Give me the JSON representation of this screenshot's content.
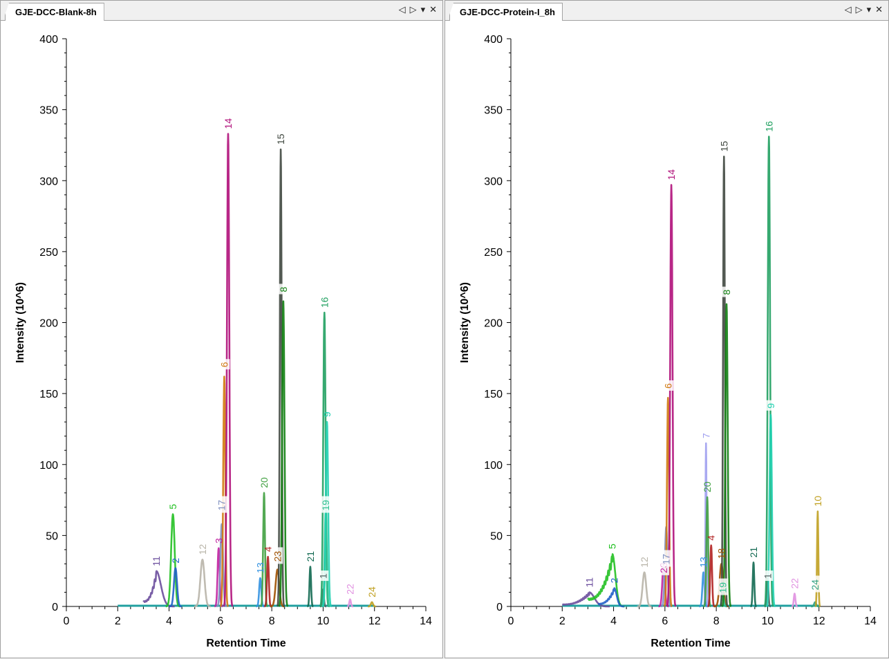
{
  "controls": {
    "prev": "◁",
    "next": "▷",
    "menu": "▾",
    "close": "✕"
  },
  "chart_data": [
    {
      "type": "line",
      "title": "GJE-DCC-Blank-8h",
      "xlabel": "Retention Time",
      "ylabel": "Intensity (10^6)",
      "xlim": [
        0,
        14
      ],
      "ylim": [
        0,
        400
      ],
      "xticks": [
        0,
        2,
        4,
        6,
        8,
        10,
        12,
        14
      ],
      "yticks": [
        0,
        50,
        100,
        150,
        200,
        250,
        300,
        350,
        400
      ],
      "baseline": [
        2,
        12
      ],
      "peaks": [
        {
          "id": "11",
          "rt": 3.5,
          "height": 25,
          "width": 0.18,
          "color": "#6a4c9c",
          "broad": 3.0
        },
        {
          "id": "5",
          "rt": 4.15,
          "height": 65,
          "width": 0.07,
          "color": "#22c022"
        },
        {
          "id": "2",
          "rt": 4.25,
          "height": 27,
          "width": 0.06,
          "color": "#1f5fc8"
        },
        {
          "id": "12",
          "rt": 5.3,
          "height": 33,
          "width": 0.08,
          "color": "#b8b4a8"
        },
        {
          "id": "3",
          "rt": 5.93,
          "height": 41,
          "width": 0.04,
          "color": "#c020a0"
        },
        {
          "id": "17",
          "rt": 6.05,
          "height": 58,
          "width": 0.05,
          "color": "#8090c0",
          "label_at": 66
        },
        {
          "id": "6",
          "rt": 6.15,
          "height": 162,
          "width": 0.04,
          "color": "#d07a10",
          "label_at": 167
        },
        {
          "id": "14",
          "rt": 6.3,
          "height": 333,
          "width": 0.045,
          "color": "#b0107a"
        },
        {
          "id": "13",
          "rt": 7.55,
          "height": 20,
          "width": 0.04,
          "color": "#3090e0"
        },
        {
          "id": "20",
          "rt": 7.7,
          "height": 80,
          "width": 0.035,
          "color": "#40a040"
        },
        {
          "id": "4",
          "rt": 7.85,
          "height": 35,
          "width": 0.035,
          "color": "#b02020"
        },
        {
          "id": "23",
          "rt": 8.22,
          "height": 26,
          "width": 0.07,
          "color": "#a05000",
          "label_at": 30
        },
        {
          "id": "15",
          "rt": 8.35,
          "height": 322,
          "width": 0.035,
          "color": "#404840"
        },
        {
          "id": "8",
          "rt": 8.45,
          "height": 215,
          "width": 0.045,
          "color": "#108010",
          "label_at": 220
        },
        {
          "id": "21",
          "rt": 9.5,
          "height": 28,
          "width": 0.03,
          "color": "#106850"
        },
        {
          "id": "1",
          "rt": 10.0,
          "height": 12,
          "width": 0.03,
          "color": "#506060",
          "label_at": 18
        },
        {
          "id": "16",
          "rt": 10.05,
          "height": 207,
          "width": 0.045,
          "color": "#20a060"
        },
        {
          "id": "19",
          "rt": 10.1,
          "height": 68,
          "width": 0.04,
          "color": "#30c090",
          "label_at": 66
        },
        {
          "id": "9",
          "rt": 10.15,
          "height": 130,
          "width": 0.045,
          "color": "#20d0b0"
        },
        {
          "id": "22",
          "rt": 11.05,
          "height": 5,
          "width": 0.03,
          "color": "#e090e0"
        },
        {
          "id": "24",
          "rt": 11.9,
          "height": 3,
          "width": 0.04,
          "color": "#c0a020"
        }
      ]
    },
    {
      "type": "line",
      "title": "GJE-DCC-Protein-I_8h",
      "xlabel": "Retention Time",
      "ylabel": "Intensity (10^6)",
      "xlim": [
        0,
        14
      ],
      "ylim": [
        0,
        400
      ],
      "xticks": [
        0,
        2,
        4,
        6,
        8,
        10,
        12,
        14
      ],
      "yticks": [
        0,
        50,
        100,
        150,
        200,
        250,
        300,
        350,
        400
      ],
      "baseline": [
        2,
        12
      ],
      "peaks": [
        {
          "id": "11",
          "rt": 3.05,
          "height": 10,
          "width": 0.2,
          "color": "#6a4c9c",
          "broad": 2.0
        },
        {
          "id": "5",
          "rt": 3.95,
          "height": 37,
          "width": 0.12,
          "color": "#22c022",
          "broad": 3.0
        },
        {
          "id": "2",
          "rt": 4.02,
          "height": 13,
          "width": 0.1,
          "color": "#1f5fc8",
          "broad": 3.4
        },
        {
          "id": "12",
          "rt": 5.2,
          "height": 24,
          "width": 0.07,
          "color": "#b8b4a8"
        },
        {
          "id": "23",
          "rt": 5.95,
          "height": 30,
          "width": 0.05,
          "color": "#c020a0",
          "label_at": 22
        },
        {
          "id": "17",
          "rt": 6.05,
          "height": 56,
          "width": 0.05,
          "color": "#8090c0",
          "label_at": 28
        },
        {
          "id": "6",
          "rt": 6.12,
          "height": 147,
          "width": 0.04,
          "color": "#d07a10",
          "label_at": 152
        },
        {
          "id": "14",
          "rt": 6.25,
          "height": 297,
          "width": 0.045,
          "color": "#b0107a"
        },
        {
          "id": "13",
          "rt": 7.5,
          "height": 24,
          "width": 0.04,
          "color": "#3090e0"
        },
        {
          "id": "7",
          "rt": 7.6,
          "height": 115,
          "width": 0.02,
          "color": "#a0a0f0"
        },
        {
          "id": "20",
          "rt": 7.65,
          "height": 77,
          "width": 0.035,
          "color": "#40a040"
        },
        {
          "id": "4",
          "rt": 7.8,
          "height": 43,
          "width": 0.035,
          "color": "#b02020"
        },
        {
          "id": "18",
          "rt": 8.2,
          "height": 30,
          "width": 0.07,
          "color": "#a05000"
        },
        {
          "id": "19",
          "rt": 8.25,
          "height": 10,
          "width": 0.04,
          "color": "#30c090",
          "label_at": 8
        },
        {
          "id": "15",
          "rt": 8.3,
          "height": 317,
          "width": 0.035,
          "color": "#404840"
        },
        {
          "id": "8",
          "rt": 8.4,
          "height": 213,
          "width": 0.045,
          "color": "#108010",
          "label_at": 218
        },
        {
          "id": "21",
          "rt": 9.45,
          "height": 31,
          "width": 0.03,
          "color": "#106850"
        },
        {
          "id": "1",
          "rt": 10.0,
          "height": 20,
          "width": 0.03,
          "color": "#506060",
          "label_at": 18
        },
        {
          "id": "16",
          "rt": 10.05,
          "height": 331,
          "width": 0.045,
          "color": "#20a060"
        },
        {
          "id": "9",
          "rt": 10.12,
          "height": 135,
          "width": 0.045,
          "color": "#20d0b0",
          "label_at": 138
        },
        {
          "id": "22",
          "rt": 11.05,
          "height": 9,
          "width": 0.03,
          "color": "#e090e0"
        },
        {
          "id": "24",
          "rt": 11.85,
          "height": 3,
          "width": 0.04,
          "color": "#30a080",
          "label_at": 10
        },
        {
          "id": "10",
          "rt": 11.95,
          "height": 67,
          "width": 0.025,
          "color": "#c0a020"
        }
      ]
    }
  ]
}
